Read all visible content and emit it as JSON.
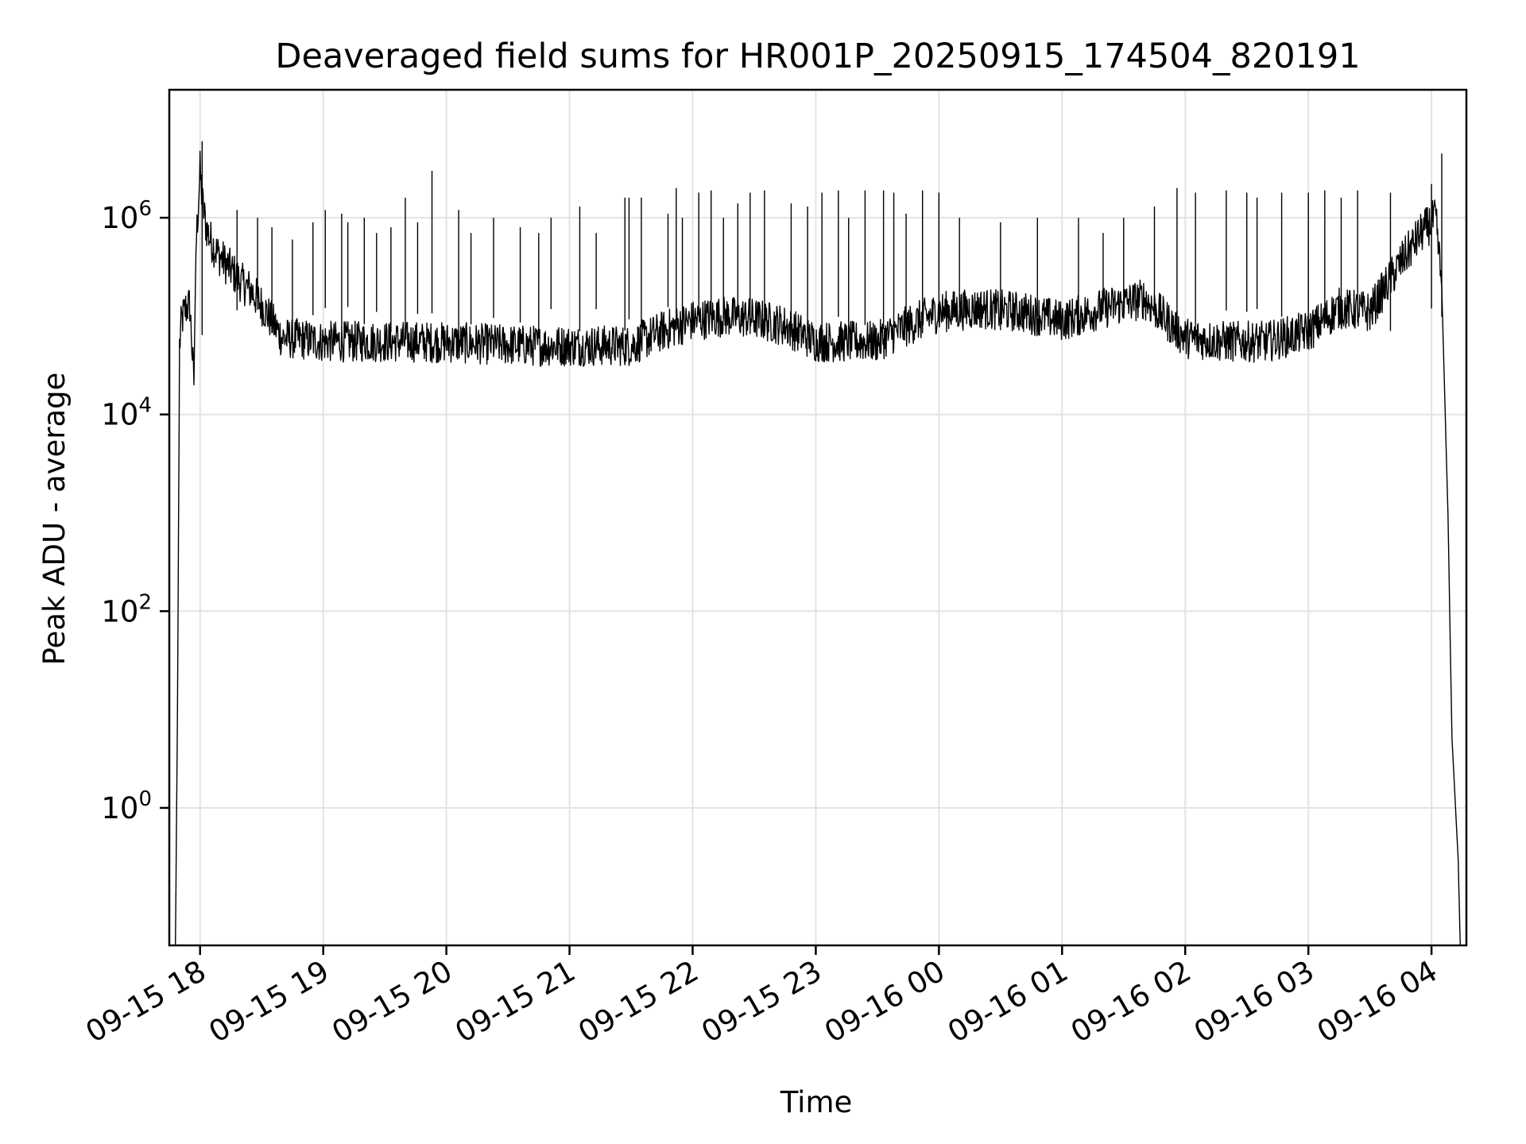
{
  "chart_data": {
    "type": "line",
    "title": "Deaveraged field sums for HR001P_20250915_174504_820191",
    "xlabel": "Time",
    "ylabel": "Peak ADU - average",
    "yscale": "log",
    "grid": true,
    "x_ticks": [
      "09-15 18",
      "09-15 19",
      "09-15 20",
      "09-15 21",
      "09-15 22",
      "09-15 23",
      "09-16 00",
      "09-16 01",
      "09-16 02",
      "09-16 03",
      "09-16 04"
    ],
    "y_ticks": [
      {
        "base": "10",
        "exp": "0",
        "value": 1
      },
      {
        "base": "10",
        "exp": "2",
        "value": 100
      },
      {
        "base": "10",
        "exp": "4",
        "value": 10000
      },
      {
        "base": "10",
        "exp": "6",
        "value": 1000000
      }
    ],
    "xlim": [
      "2025-09-15 17:45",
      "2025-09-16 04:17"
    ],
    "ylim": [
      0.04,
      20000000
    ],
    "series": [
      {
        "color": "#000000",
        "x": [
          "2025-09-15 17:48",
          "2025-09-15 17:49",
          "2025-09-15 17:50",
          "2025-09-15 17:51",
          "2025-09-15 17:53",
          "2025-09-15 17:55",
          "2025-09-15 17:57",
          "2025-09-15 17:58",
          "2025-09-15 18:00",
          "2025-09-15 18:01",
          "2025-09-15 18:03",
          "2025-09-15 18:05",
          "2025-09-15 18:08",
          "2025-09-15 18:12",
          "2025-09-15 18:16",
          "2025-09-15 18:20",
          "2025-09-15 18:25",
          "2025-09-15 18:30",
          "2025-09-15 18:40",
          "2025-09-15 18:50",
          "2025-09-15 19:00",
          "2025-09-15 19:20",
          "2025-09-15 19:40",
          "2025-09-15 20:00",
          "2025-09-15 20:20",
          "2025-09-15 20:40",
          "2025-09-15 21:00",
          "2025-09-15 21:30",
          "2025-09-15 21:45",
          "2025-09-15 22:00",
          "2025-09-15 22:15",
          "2025-09-15 22:30",
          "2025-09-15 22:45",
          "2025-09-15 23:00",
          "2025-09-15 23:30",
          "2025-09-15 23:45",
          "2025-09-16 00:00",
          "2025-09-16 00:20",
          "2025-09-16 00:40",
          "2025-09-16 01:00",
          "2025-09-16 01:20",
          "2025-09-16 01:40",
          "2025-09-16 02:00",
          "2025-09-16 02:20",
          "2025-09-16 02:40",
          "2025-09-16 03:00",
          "2025-09-16 03:15",
          "2025-09-16 03:30",
          "2025-09-16 03:45",
          "2025-09-16 03:55",
          "2025-09-16 04:00",
          "2025-09-16 04:02",
          "2025-09-16 04:05",
          "2025-09-16 04:08",
          "2025-09-16 04:10",
          "2025-09-16 04:13",
          "2025-09-16 04:14"
        ],
        "y": [
          0.04,
          10,
          50000,
          90000,
          120000,
          130000,
          20000,
          500000,
          3000000,
          1500000,
          800000,
          600000,
          450000,
          350000,
          280000,
          220000,
          180000,
          130000,
          60000,
          58000,
          55000,
          55000,
          55000,
          54000,
          52000,
          50000,
          50000,
          50000,
          70000,
          90000,
          100000,
          95000,
          80000,
          55000,
          55000,
          80000,
          110000,
          120000,
          110000,
          90000,
          120000,
          150000,
          60000,
          55000,
          55000,
          70000,
          120000,
          110000,
          350000,
          700000,
          900000,
          1000000,
          200000,
          1000,
          5,
          0.3,
          0.04
        ]
      }
    ],
    "spikes": {
      "x": [
        "2025-09-15 18:01",
        "2025-09-15 18:18",
        "2025-09-15 18:28",
        "2025-09-15 18:35",
        "2025-09-15 18:45",
        "2025-09-15 18:55",
        "2025-09-15 19:01",
        "2025-09-15 19:09",
        "2025-09-15 19:12",
        "2025-09-15 19:20",
        "2025-09-15 19:26",
        "2025-09-15 19:33",
        "2025-09-15 19:40",
        "2025-09-15 19:46",
        "2025-09-15 19:53",
        "2025-09-15 20:06",
        "2025-09-15 20:12",
        "2025-09-15 20:23",
        "2025-09-15 20:36",
        "2025-09-15 20:45",
        "2025-09-15 20:51",
        "2025-09-15 21:05",
        "2025-09-15 21:13",
        "2025-09-15 21:27",
        "2025-09-15 21:29",
        "2025-09-15 21:35",
        "2025-09-15 21:48",
        "2025-09-15 21:52",
        "2025-09-15 21:55",
        "2025-09-15 22:03",
        "2025-09-15 22:09",
        "2025-09-15 22:15",
        "2025-09-15 22:22",
        "2025-09-15 22:28",
        "2025-09-15 22:35",
        "2025-09-15 22:48",
        "2025-09-15 22:56",
        "2025-09-15 23:03",
        "2025-09-15 23:11",
        "2025-09-15 23:16",
        "2025-09-15 23:24",
        "2025-09-15 23:33",
        "2025-09-15 23:38",
        "2025-09-15 23:44",
        "2025-09-15 23:52",
        "2025-09-16 00:00",
        "2025-09-16 00:10",
        "2025-09-16 00:30",
        "2025-09-16 00:48",
        "2025-09-16 01:08",
        "2025-09-16 01:20",
        "2025-09-16 01:30",
        "2025-09-16 01:45",
        "2025-09-16 01:56",
        "2025-09-16 02:05",
        "2025-09-16 02:20",
        "2025-09-16 02:30",
        "2025-09-16 02:35",
        "2025-09-16 02:47",
        "2025-09-16 03:00",
        "2025-09-16 03:08",
        "2025-09-16 03:16",
        "2025-09-16 03:24",
        "2025-09-16 03:40",
        "2025-09-16 04:00",
        "2025-09-16 04:05"
      ],
      "y": [
        6000000,
        1200000,
        1000000,
        800000,
        600000,
        900000,
        1200000,
        1100000,
        900000,
        1000000,
        700000,
        800000,
        1600000,
        900000,
        3000000,
        1200000,
        700000,
        1000000,
        800000,
        700000,
        1000000,
        1300000,
        700000,
        1600000,
        1600000,
        1600000,
        1100000,
        2000000,
        1000000,
        1800000,
        1900000,
        1000000,
        1400000,
        1800000,
        1900000,
        1400000,
        1300000,
        1800000,
        1900000,
        1000000,
        1900000,
        1900000,
        1800000,
        1100000,
        1900000,
        1800000,
        1000000,
        900000,
        1000000,
        1000000,
        700000,
        1000000,
        1300000,
        2000000,
        1800000,
        1900000,
        1800000,
        1600000,
        1800000,
        1800000,
        1900000,
        1600000,
        1900000,
        1800000,
        2200000,
        4500000
      ]
    }
  }
}
